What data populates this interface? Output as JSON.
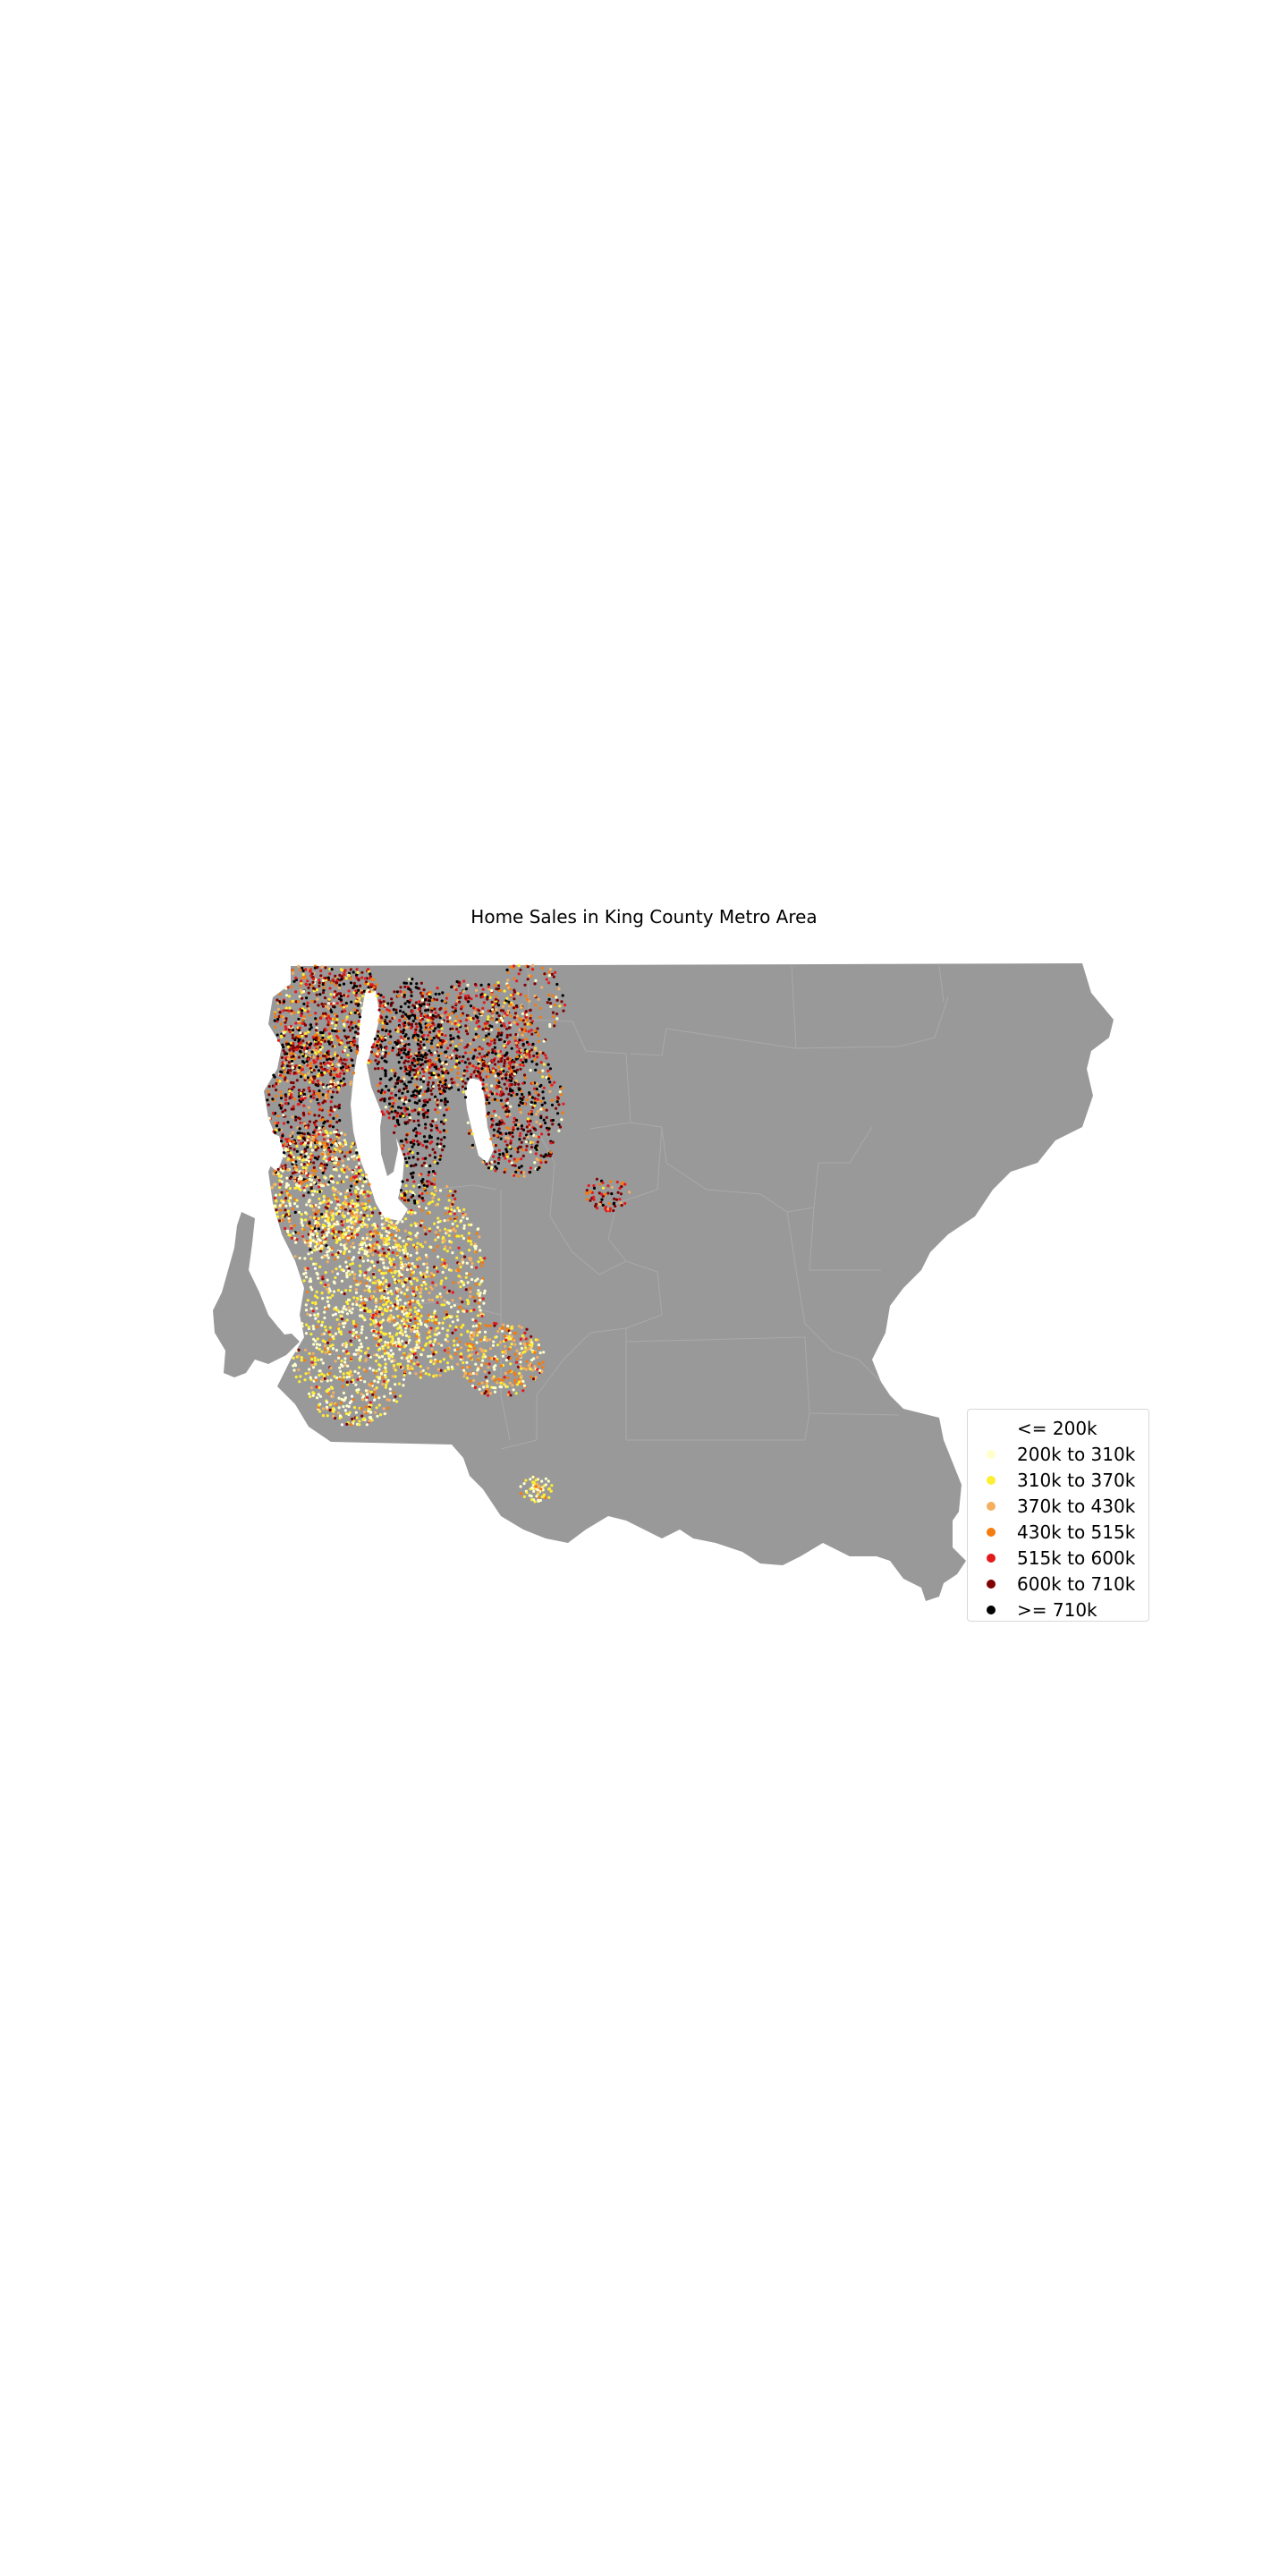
{
  "title": "Home Sales in King County Metro Area",
  "colors": {
    "land": "#999999",
    "water": "#ffffff",
    "boundary": "#aaaaaa"
  },
  "legend": {
    "items": [
      {
        "label": "<= 200k",
        "color": "#ffffff"
      },
      {
        "label": "200k to 310k",
        "color": "#ffffcc"
      },
      {
        "label": "310k to 370k",
        "color": "#ffee33"
      },
      {
        "label": "370k to 430k",
        "color": "#f4b060"
      },
      {
        "label": "430k to 515k",
        "color": "#f57c0e"
      },
      {
        "label": "515k to 600k",
        "color": "#e31a1c"
      },
      {
        "label": "600k to 710k",
        "color": "#800000"
      },
      {
        "label": ">= 710k",
        "color": "#000000"
      }
    ]
  }
}
